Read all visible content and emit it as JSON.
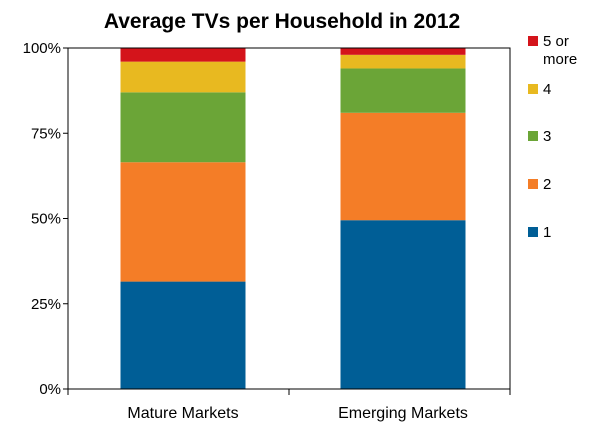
{
  "chart_data": {
    "type": "bar",
    "stacked": true,
    "title": "Average TVs per Household in 2012",
    "categories": [
      "Mature Markets",
      "Emerging Markets"
    ],
    "y_ticks": [
      "0%",
      "25%",
      "50%",
      "75%",
      "100%"
    ],
    "ylim": [
      0,
      100
    ],
    "series": [
      {
        "name": "1",
        "color": "#005E96",
        "values": [
          31.5,
          49.5
        ]
      },
      {
        "name": "2",
        "color": "#F47D27",
        "values": [
          35,
          31.5
        ]
      },
      {
        "name": "3",
        "color": "#6BA537",
        "values": [
          20.5,
          13
        ]
      },
      {
        "name": "4",
        "color": "#E8B920",
        "values": [
          9,
          4
        ]
      },
      {
        "name": "5 or more",
        "color": "#D4141B",
        "values": [
          4,
          2
        ]
      }
    ],
    "legend_position": "right",
    "grid": false
  }
}
